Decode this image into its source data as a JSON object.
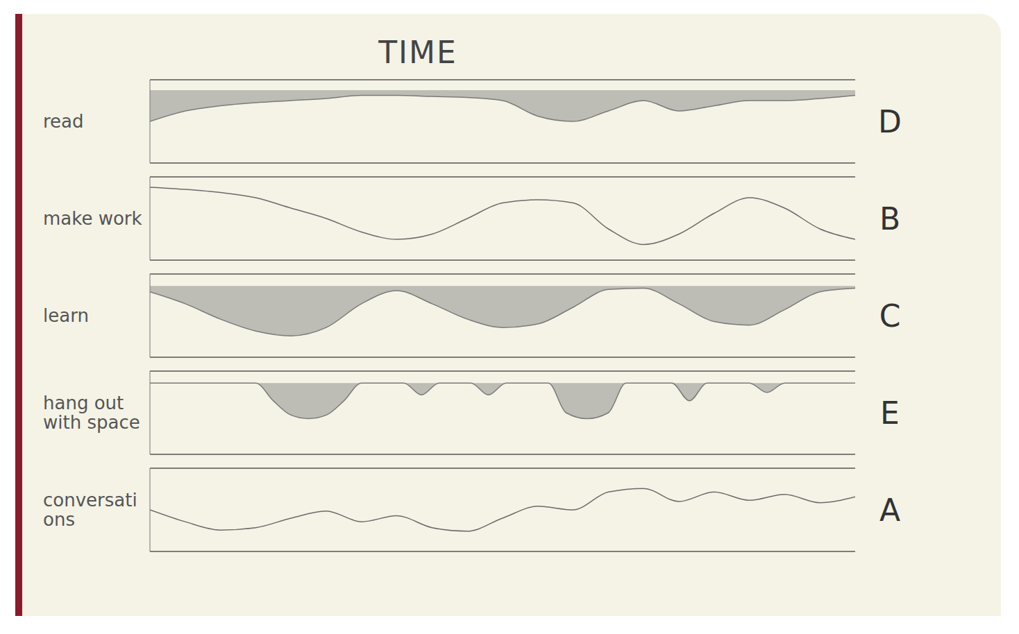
{
  "title": "TIME",
  "chart_data": [
    {
      "type": "area",
      "y_label": "read",
      "annotation": "D",
      "color": "#7a7a7a",
      "x": [
        0,
        1,
        2,
        3,
        4,
        5,
        6,
        7,
        8,
        9,
        10,
        11,
        12,
        13,
        14,
        15,
        16,
        17,
        18,
        19,
        20
      ],
      "values": [
        -3,
        -2,
        -1.5,
        -1.2,
        -1,
        -0.8,
        -0.5,
        -0.5,
        -0.6,
        -0.7,
        -1,
        -2.5,
        -3,
        -2,
        -1,
        -2,
        -1.5,
        -1,
        -1,
        -0.8,
        -0.5
      ],
      "xlim": [
        0,
        20
      ],
      "ylim": [
        -7,
        1
      ],
      "yticks": [
        0
      ],
      "grid": true,
      "tick_labels": false
    },
    {
      "type": "line",
      "y_label": "make work",
      "annotation": "B",
      "color": "#6a6a6a",
      "x": [
        0,
        1,
        2,
        3,
        4,
        5,
        6,
        7,
        8,
        9,
        10,
        11,
        12,
        13,
        14,
        15,
        16,
        17,
        18,
        19,
        20
      ],
      "values": [
        0,
        -0.2,
        -0.5,
        -1,
        -2,
        -3,
        -4.3,
        -5,
        -4.5,
        -3,
        -1.5,
        -1.2,
        -1.5,
        -4,
        -5.5,
        -4.5,
        -2.5,
        -1,
        -2,
        -4,
        -5
      ],
      "xlim": [
        0,
        20
      ],
      "ylim": [
        -7,
        1
      ],
      "yticks": [
        0
      ],
      "grid": true,
      "tick_labels": false
    },
    {
      "type": "area",
      "y_label": "learn",
      "annotation": "C",
      "color": "#7a7a7a",
      "x": [
        0,
        1,
        2,
        3,
        4,
        5,
        6,
        7,
        8,
        9,
        10,
        11,
        12,
        13,
        14,
        15,
        16,
        17,
        18,
        19,
        20
      ],
      "values": [
        -0.5,
        -1.5,
        -2.8,
        -3.8,
        -4.2,
        -3.5,
        -1.5,
        -0.4,
        -1.5,
        -2.8,
        -3.5,
        -3.2,
        -1.8,
        -0.3,
        -0.2,
        -1.5,
        -3,
        -3.3,
        -2,
        -0.5,
        -0.2
      ],
      "xlim": [
        0,
        20
      ],
      "ylim": [
        -6,
        1
      ],
      "yticks": [
        0
      ],
      "grid": true,
      "tick_labels": false
    },
    {
      "type": "area",
      "y_label": "hang out with space",
      "annotation": "E",
      "color": "#7a7a7a",
      "x": [
        0,
        3,
        3.5,
        4,
        4.5,
        5,
        5.5,
        6,
        7.2,
        7.7,
        8.2,
        9.1,
        9.6,
        10.1,
        11.3,
        11.8,
        12.4,
        13,
        13.5,
        14.8,
        15.3,
        15.8,
        17,
        17.5,
        18,
        20
      ],
      "values": [
        0,
        0,
        -1.5,
        -2.7,
        -3,
        -2.7,
        -1.5,
        0,
        0,
        -1,
        0,
        0,
        -1,
        0,
        0,
        -2.5,
        -3,
        -2.5,
        0,
        0,
        -1.5,
        0,
        0,
        -0.8,
        0,
        0
      ],
      "xlim": [
        0,
        20
      ],
      "ylim": [
        -6,
        1
      ],
      "yticks": [
        0
      ],
      "grid": true,
      "tick_labels": false
    },
    {
      "type": "line",
      "y_label": "conversations",
      "annotation": "A",
      "color": "#6a6a6a",
      "x": [
        0,
        1,
        2,
        3,
        4,
        5,
        6,
        7,
        8,
        9,
        10,
        11,
        12,
        13,
        14,
        15,
        16,
        17,
        18,
        19,
        20
      ],
      "values": [
        -0.5,
        -1.5,
        -2.2,
        -2,
        -1.2,
        -0.6,
        -1.5,
        -1,
        -2,
        -2.3,
        -1.2,
        -0.2,
        -0.5,
        1,
        1.3,
        0.2,
        1,
        0.3,
        0.8,
        0.1,
        0.6
      ],
      "xlim": [
        0,
        20
      ],
      "ylim": [
        -4,
        3
      ],
      "yticks": [
        0
      ],
      "grid": true,
      "tick_labels": false
    }
  ]
}
